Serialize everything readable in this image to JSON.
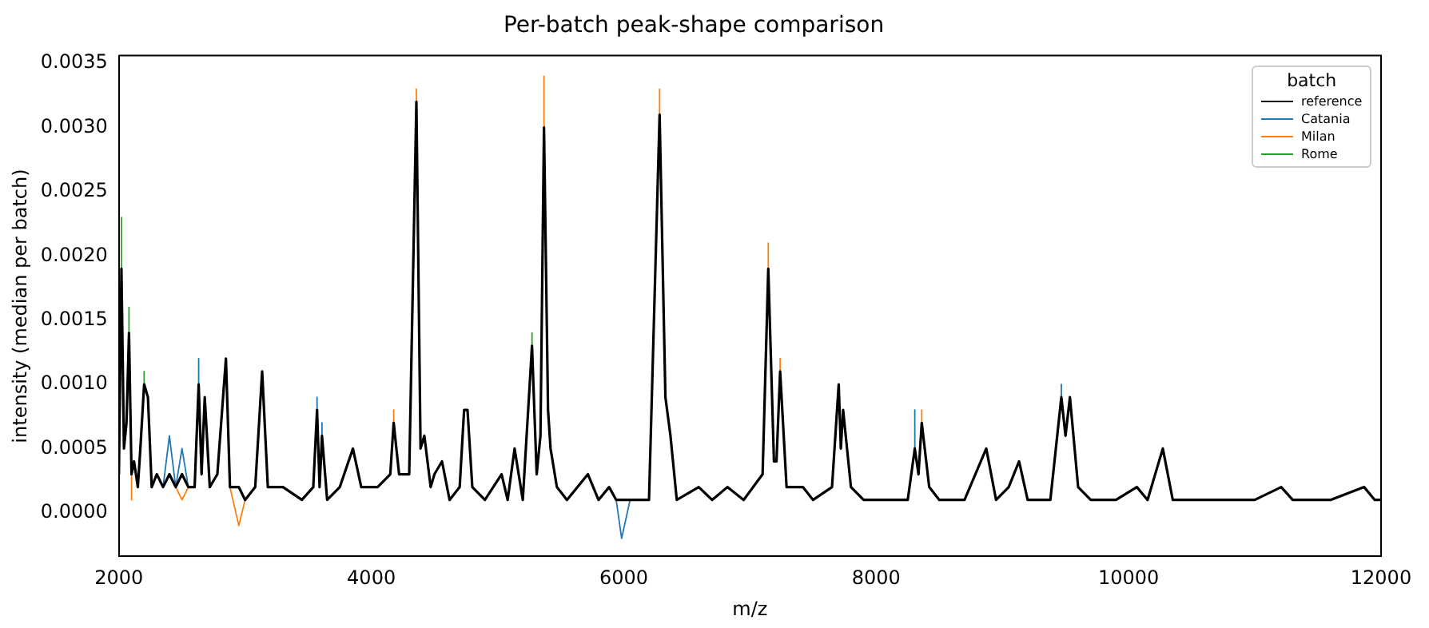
{
  "chart_data": {
    "type": "line",
    "title": "Per-batch peak-shape comparison",
    "xlabel": "m/z",
    "ylabel": "intensity (median per batch)",
    "legend_title": "batch",
    "legend": "top right",
    "grid": false,
    "marker": "none",
    "line_style": "solid",
    "xlim": [
      2000,
      12000
    ],
    "xticks": [
      2000,
      4000,
      6000,
      8000,
      10000,
      12000
    ],
    "ylim": [
      -0.00034,
      0.00356
    ],
    "yticks": [
      {
        "value": 0,
        "label": "0.0000"
      },
      {
        "value": 0.0005,
        "label": "0.0005"
      },
      {
        "value": 0.001,
        "label": "0.0010"
      },
      {
        "value": 0.0015,
        "label": "0.0015"
      },
      {
        "value": 0.002,
        "label": "0.0020"
      },
      {
        "value": 0.0025,
        "label": "0.0025"
      },
      {
        "value": 0.003,
        "label": "0.0030"
      },
      {
        "value": 0.0035,
        "label": "0.0035"
      }
    ],
    "x": [
      2000,
      2020,
      2040,
      2060,
      2080,
      2100,
      2120,
      2150,
      2170,
      2200,
      2230,
      2260,
      2300,
      2350,
      2400,
      2450,
      2500,
      2550,
      2600,
      2632,
      2655,
      2680,
      2720,
      2780,
      2848,
      2880,
      2950,
      3000,
      3080,
      3135,
      3180,
      3300,
      3450,
      3540,
      3570,
      3590,
      3609,
      3650,
      3750,
      3854,
      3920,
      4050,
      4150,
      4177,
      4220,
      4300,
      4357,
      4390,
      4420,
      4470,
      4500,
      4560,
      4620,
      4700,
      4735,
      4762,
      4800,
      4900,
      5032,
      5080,
      5135,
      5200,
      5273,
      5310,
      5340,
      5368,
      5400,
      5420,
      5470,
      5550,
      5716,
      5800,
      5884,
      5940,
      5983,
      6050,
      6200,
      6284,
      6330,
      6370,
      6420,
      6594,
      6700,
      6821,
      6950,
      7100,
      7145,
      7190,
      7210,
      7239,
      7290,
      7419,
      7500,
      7650,
      7703,
      7720,
      7738,
      7800,
      7900,
      8100,
      8250,
      8306,
      8335,
      8361,
      8420,
      8500,
      8700,
      8872,
      8950,
      9050,
      9132,
      9200,
      9277,
      9380,
      9467,
      9500,
      9535,
      9600,
      9700,
      9900,
      10065,
      10150,
      10271,
      10350,
      10500,
      11000,
      11209,
      11300,
      11432,
      11600,
      11866,
      11950,
      12000
    ],
    "series": [
      {
        "name": "reference",
        "color": "#000000",
        "values": [
          0.0003,
          0.0019,
          0.0005,
          0.0007,
          0.0014,
          0.0003,
          0.0004,
          0.0002,
          0.0005,
          0.001,
          0.0009,
          0.0002,
          0.0003,
          0.0002,
          0.0003,
          0.0002,
          0.0003,
          0.0002,
          0.0002,
          0.001,
          0.0003,
          0.0009,
          0.0002,
          0.0003,
          0.0012,
          0.0002,
          0.0002,
          0.0001,
          0.0002,
          0.0011,
          0.0002,
          0.0002,
          0.0001,
          0.0002,
          0.0008,
          0.0002,
          0.0006,
          0.0001,
          0.0002,
          0.0005,
          0.0002,
          0.0002,
          0.0003,
          0.0007,
          0.0003,
          0.0003,
          0.0032,
          0.0005,
          0.0006,
          0.0002,
          0.0003,
          0.0004,
          0.0001,
          0.0002,
          0.0008,
          0.0008,
          0.0002,
          0.0001,
          0.0003,
          0.0001,
          0.0005,
          0.0001,
          0.0013,
          0.0003,
          0.0006,
          0.003,
          0.0008,
          0.0005,
          0.0002,
          0.0001,
          0.0003,
          0.0001,
          0.0002,
          0.0001,
          0.0001,
          0.0001,
          0.0001,
          0.0031,
          0.0009,
          0.0006,
          0.0001,
          0.0002,
          0.0001,
          0.0002,
          0.0001,
          0.0003,
          0.0019,
          0.0004,
          0.0004,
          0.0011,
          0.0002,
          0.0002,
          0.0001,
          0.0002,
          0.001,
          0.0005,
          0.0008,
          0.0002,
          0.0001,
          0.0001,
          0.0001,
          0.0005,
          0.0003,
          0.0007,
          0.0002,
          0.0001,
          0.0001,
          0.0005,
          0.0001,
          0.0002,
          0.0004,
          0.0001,
          0.0001,
          0.0001,
          0.0009,
          0.0006,
          0.0009,
          0.0002,
          0.0001,
          0.0001,
          0.0002,
          0.0001,
          0.0005,
          0.0001,
          0.0001,
          0.0001,
          0.0002,
          0.0001,
          0.0001,
          0.0001,
          0.0002,
          0.0001,
          0.0001
        ]
      },
      {
        "name": "Catania",
        "color": "#1f77b4",
        "x": [
          2350,
          2400,
          2450,
          2500,
          2550,
          null,
          2632,
          2632,
          null,
          3570,
          3570,
          null,
          3609,
          3609,
          null,
          5940,
          5983,
          6050,
          null,
          8306,
          8306,
          null,
          9467,
          9467
        ],
        "values": [
          0.0002,
          0.0006,
          0.0002,
          0.0005,
          0.0002,
          null,
          0.001,
          0.0012,
          null,
          0.0008,
          0.0009,
          null,
          0.0006,
          0.0007,
          null,
          0.0001,
          -0.0002,
          0.0001,
          null,
          0.0005,
          0.0008,
          null,
          0.0009,
          0.001
        ]
      },
      {
        "name": "Milan",
        "color": "#ff7f0e",
        "x": [
          2100,
          2100,
          null,
          2450,
          2500,
          2550,
          null,
          2880,
          2950,
          3000,
          null,
          4177,
          4177,
          null,
          4357,
          4357,
          null,
          5368,
          5368,
          null,
          6284,
          6284,
          null,
          7145,
          7145,
          null,
          7239,
          7239,
          null,
          8361,
          8361
        ],
        "values": [
          0.0003,
          0.0001,
          null,
          0.0002,
          0.0001,
          0.0002,
          null,
          0.0002,
          -0.0001,
          0.0001,
          null,
          0.0007,
          0.0008,
          null,
          0.0032,
          0.0033,
          null,
          0.003,
          0.0034,
          null,
          0.0031,
          0.0033,
          null,
          0.0019,
          0.0021,
          null,
          0.0011,
          0.0012,
          null,
          0.0007,
          0.0008
        ]
      },
      {
        "name": "Rome",
        "color": "#2ca02c",
        "x": [
          2020,
          2020,
          null,
          2080,
          2080,
          null,
          2200,
          2200,
          null,
          5273,
          5273
        ],
        "values": [
          0.0019,
          0.0023,
          null,
          0.0014,
          0.0016,
          null,
          0.001,
          0.0011,
          null,
          0.0013,
          0.0014
        ]
      }
    ]
  }
}
